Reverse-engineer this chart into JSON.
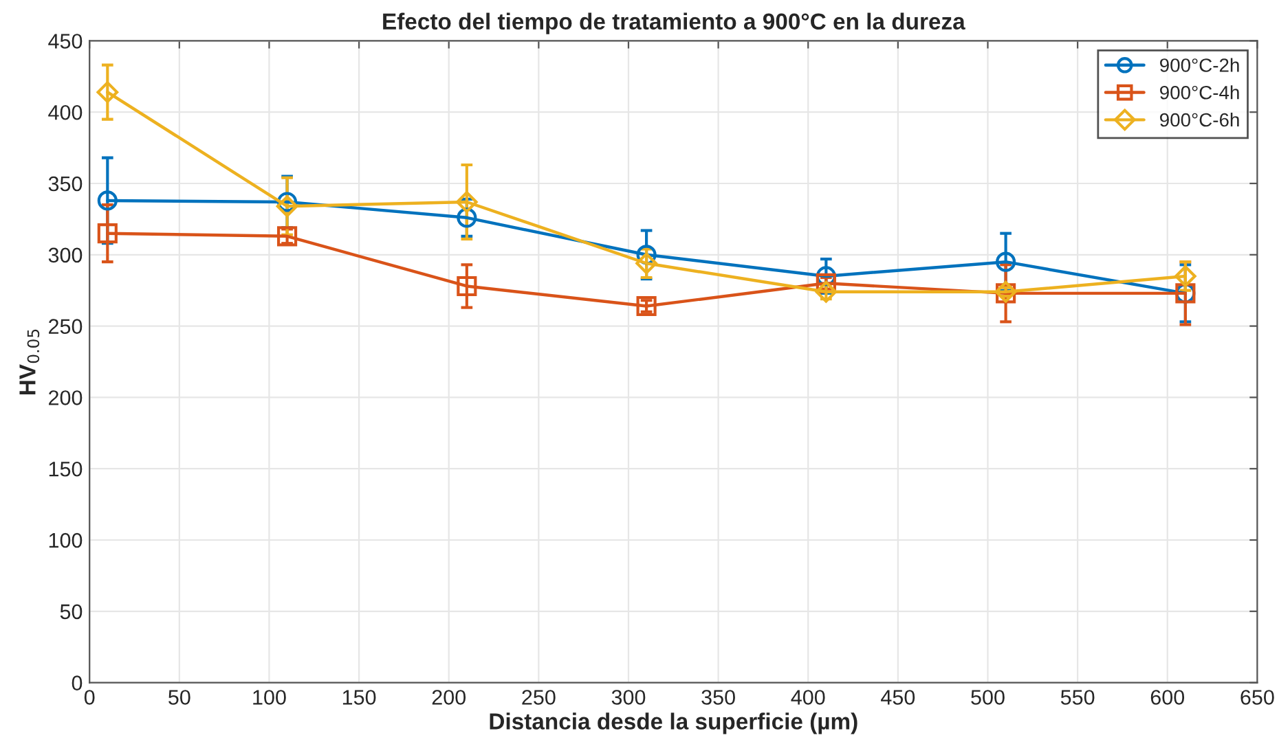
{
  "chart_data": {
    "type": "line",
    "title": "Efecto del tiempo de tratamiento a 900°C en la dureza",
    "xlabel": "Distancia desde la superficie (µm)",
    "ylabel": "HV$_{0.05}$",
    "x": [
      10,
      110,
      210,
      310,
      410,
      510,
      610
    ],
    "series": [
      {
        "name": "900°C-2h",
        "color": "#0072bd",
        "marker": "circle",
        "values": [
          338,
          337,
          326,
          300,
          285,
          295,
          273
        ],
        "errors": [
          30,
          18,
          13,
          17,
          12,
          20,
          20
        ]
      },
      {
        "name": "900°C-4h",
        "color": "#d95319",
        "marker": "square",
        "values": [
          315,
          313,
          278,
          264,
          280,
          273,
          273
        ],
        "errors": [
          20,
          5,
          15,
          4,
          4,
          20,
          22
        ]
      },
      {
        "name": "900°C-6h",
        "color": "#edb120",
        "marker": "diamond",
        "values": [
          414,
          334,
          337,
          294,
          274,
          274,
          285
        ],
        "errors": [
          19,
          20,
          26,
          10,
          5,
          3,
          10
        ]
      }
    ],
    "xlim": [
      0,
      650
    ],
    "xticks": [
      0,
      50,
      100,
      150,
      200,
      250,
      300,
      350,
      400,
      450,
      500,
      550,
      600,
      650
    ],
    "ylim": [
      0,
      450
    ],
    "yticks": [
      0,
      50,
      100,
      150,
      200,
      250,
      300,
      350,
      400,
      450
    ],
    "grid": true,
    "legend": "top right",
    "line_style": "solid"
  }
}
